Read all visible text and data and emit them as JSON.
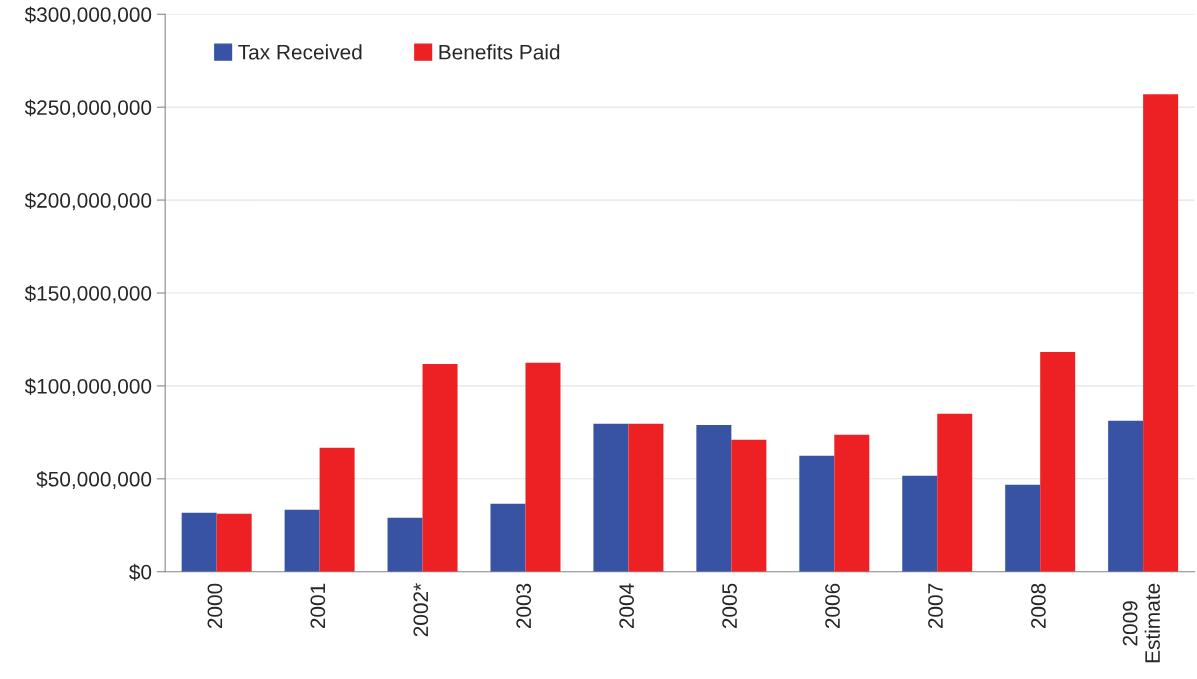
{
  "chart_data": {
    "type": "bar",
    "categories": [
      "2000",
      "2001",
      "2002*",
      "2003",
      "2004",
      "2005",
      "2006",
      "2007",
      "2008",
      "2009\nEstimate"
    ],
    "series": [
      {
        "name": "Tax Received",
        "color": "#3953a4",
        "values": [
          31700000,
          33300000,
          29000000,
          36600000,
          79600000,
          79000000,
          62400000,
          51600000,
          46800000,
          81200000
        ]
      },
      {
        "name": "Benefits Paid",
        "color": "#ed2024",
        "values": [
          31200000,
          66700000,
          111800000,
          112400000,
          79600000,
          71000000,
          73700000,
          85000000,
          118300000,
          257000000
        ]
      }
    ],
    "ylim": [
      0,
      300000000
    ],
    "yticks": [
      {
        "value": 0,
        "label": "$0"
      },
      {
        "value": 50000000,
        "label": "$50,000,000"
      },
      {
        "value": 100000000,
        "label": "$100,000,000"
      },
      {
        "value": 150000000,
        "label": "$150,000,000"
      },
      {
        "value": 200000000,
        "label": "$200,000,000"
      },
      {
        "value": 250000000,
        "label": "$250,000,000"
      },
      {
        "value": 300000000,
        "label": "$300,000,000"
      }
    ],
    "grid": "y",
    "legend": "top left"
  }
}
